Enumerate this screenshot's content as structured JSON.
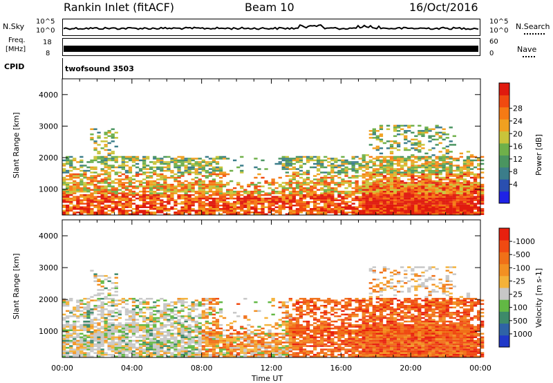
{
  "header": {
    "station": "Rankin Inlet (fitACF)",
    "beam": "Beam 10",
    "date": "16/Oct/2016"
  },
  "top_panels": {
    "nsky_label": "N.Sky",
    "nsky_ticks": [
      "10^5",
      "10^0"
    ],
    "nsearch_label": "N.Search",
    "nsearch_ticks": [
      "10^5",
      "10^0"
    ],
    "freq_label": "Freq.",
    "freq_unit": "[MHz]",
    "freq_ticks": [
      "18",
      "8"
    ],
    "nave_label": "Nave",
    "nave_ticks": [
      "60",
      "0"
    ],
    "cpid_label": "CPID",
    "cpid_value": "twofsound 3503"
  },
  "chart_data": [
    {
      "type": "heatmap",
      "panel": "power",
      "ylabel": "Slant Range [km]",
      "xlabel": "",
      "yticks": [
        1000,
        2000,
        3000,
        4000
      ],
      "ylim": [
        180,
        4500
      ],
      "xlim": [
        0,
        24
      ],
      "colorbar": {
        "label": "Power [dB]",
        "ticks": [
          "4",
          "8",
          "12",
          "16",
          "20",
          "24",
          "28"
        ],
        "colors": [
          "#1f22e6",
          "#2a4fb0",
          "#3b7d8a",
          "#4a9560",
          "#6fb04a",
          "#c9c43a",
          "#f0a020",
          "#f57a14",
          "#f04a10",
          "#e01a0e"
        ]
      }
    },
    {
      "type": "heatmap",
      "panel": "velocity",
      "ylabel": "Slant Range [km]",
      "xlabel": "Time UT",
      "yticks": [
        1000,
        2000,
        3000,
        4000
      ],
      "ylim": [
        180,
        4500
      ],
      "xlim": [
        0,
        24
      ],
      "xticks": [
        "00:00",
        "04:00",
        "08:00",
        "12:00",
        "16:00",
        "20:00",
        "00:00"
      ],
      "colorbar": {
        "label": "Velocity [m s-1]",
        "ticks": [
          "1000",
          "500",
          "100",
          "25",
          "-25",
          "-100",
          "-500",
          "-1000"
        ],
        "colors": [
          "#2038c8",
          "#2f63a6",
          "#3d8a6a",
          "#62b844",
          "#c7c7c7",
          "#f4b23a",
          "#f39022",
          "#f07018",
          "#f04a12",
          "#e8200e"
        ]
      }
    }
  ]
}
